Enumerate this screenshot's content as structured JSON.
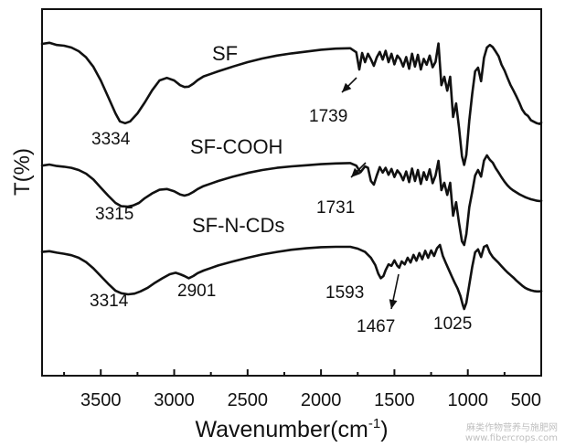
{
  "chart_data": {
    "type": "line",
    "xlabel": "Wavenumber(cm",
    "xlabel_sup": "-1",
    "xlabel_close": ")",
    "ylabel": "T(%)",
    "xlim": [
      3900,
      500
    ],
    "x_reversed": true,
    "xticks": [
      3500,
      3000,
      2500,
      2000,
      1500,
      1000,
      500
    ],
    "y_ticks_shown": false,
    "grid": false,
    "legend": "none",
    "series": [
      {
        "name": "SF",
        "x": [
          3900,
          3850,
          3800,
          3750,
          3700,
          3650,
          3600,
          3550,
          3500,
          3450,
          3400,
          3370,
          3334,
          3300,
          3250,
          3200,
          3150,
          3100,
          3050,
          3000,
          2960,
          2930,
          2901,
          2870,
          2840,
          2800,
          2750,
          2700,
          2600,
          2500,
          2400,
          2300,
          2200,
          2100,
          2000,
          1900,
          1800,
          1760,
          1739,
          1720,
          1700,
          1680,
          1660,
          1640,
          1620,
          1600,
          1580,
          1560,
          1540,
          1520,
          1500,
          1480,
          1460,
          1440,
          1420,
          1400,
          1380,
          1360,
          1340,
          1320,
          1300,
          1280,
          1260,
          1240,
          1220,
          1200,
          1180,
          1160,
          1140,
          1120,
          1100,
          1080,
          1060,
          1040,
          1025,
          1010,
          990,
          970,
          950,
          930,
          910,
          890,
          870,
          850,
          830,
          810,
          790,
          770,
          750,
          730,
          710,
          690,
          670,
          650,
          630,
          610,
          590,
          570,
          550,
          530,
          510,
          500
        ],
        "y": [
          91.5,
          91.8,
          91.2,
          91,
          90.5,
          89.5,
          87.8,
          85.2,
          81.5,
          77,
          72.5,
          70.3,
          69.8,
          70.3,
          72.5,
          75.5,
          78.8,
          81.5,
          82.2,
          81.5,
          80.2,
          79.7,
          79.8,
          80.6,
          81.6,
          82.6,
          83.3,
          84,
          85.3,
          86.5,
          87.5,
          88.3,
          88.9,
          89.4,
          89.9,
          90.2,
          90.3,
          89.2,
          84.5,
          89,
          86.5,
          88.8,
          87.3,
          85.5,
          87.8,
          89.3,
          87.2,
          89.6,
          86.5,
          88.8,
          85.9,
          88.3,
          87.3,
          85.3,
          87.9,
          84.7,
          88.8,
          85.3,
          88.5,
          84.5,
          87.4,
          85.8,
          88.3,
          85.1,
          86.6,
          91.6,
          80.2,
          82.5,
          78.7,
          82.5,
          71.5,
          75.2,
          68.5,
          60.8,
          58.4,
          61.2,
          70.5,
          77.8,
          84,
          85,
          81.3,
          87.7,
          90.5,
          91.2,
          90.6,
          89.4,
          88.1,
          85.8,
          84.2,
          82.2,
          80.3,
          78.8,
          77.2,
          75.5,
          73.6,
          72.4,
          71.8,
          70.6,
          70.2,
          69.8,
          69.6,
          70
        ]
      },
      {
        "name": "SF-COOH",
        "x": [
          3900,
          3850,
          3800,
          3750,
          3700,
          3650,
          3600,
          3550,
          3500,
          3450,
          3400,
          3360,
          3315,
          3280,
          3240,
          3200,
          3150,
          3100,
          3050,
          3000,
          2960,
          2930,
          2901,
          2870,
          2840,
          2800,
          2750,
          2700,
          2600,
          2500,
          2400,
          2300,
          2200,
          2100,
          2000,
          1900,
          1800,
          1760,
          1731,
          1700,
          1680,
          1660,
          1640,
          1620,
          1600,
          1580,
          1560,
          1540,
          1520,
          1500,
          1480,
          1460,
          1440,
          1420,
          1400,
          1380,
          1360,
          1340,
          1320,
          1300,
          1280,
          1260,
          1240,
          1220,
          1200,
          1180,
          1160,
          1140,
          1120,
          1100,
          1080,
          1060,
          1040,
          1025,
          1010,
          990,
          970,
          950,
          930,
          910,
          890,
          870,
          850,
          830,
          810,
          790,
          770,
          750,
          730,
          710,
          690,
          670,
          650,
          630,
          610,
          590,
          570,
          550,
          530,
          510,
          500
        ],
        "y": [
          58.2,
          58.5,
          58.1,
          57.9,
          57.6,
          57,
          56,
          54.4,
          52.2,
          50,
          48,
          47.1,
          47,
          47.3,
          48,
          49.3,
          50.6,
          51.6,
          51.8,
          51.2,
          50.3,
          50,
          50.3,
          51,
          51.8,
          52.6,
          53.3,
          54,
          55.2,
          56.2,
          57,
          57.6,
          58,
          58.3,
          58.6,
          58.8,
          58.9,
          58.2,
          56.4,
          58,
          57.6,
          54,
          53,
          55.5,
          57.8,
          56.3,
          57.6,
          55.7,
          57.3,
          55.1,
          56.9,
          55.9,
          54.2,
          56.6,
          53.7,
          57.4,
          54,
          57,
          53.2,
          56.4,
          54.3,
          57.2,
          53.4,
          55.5,
          59.5,
          51.5,
          53.5,
          50.2,
          53.5,
          44.5,
          48.2,
          42.5,
          37.5,
          36.5,
          39.5,
          46.8,
          51,
          55.5,
          57,
          55.2,
          59.6,
          61,
          59.8,
          59,
          57.5,
          56.3,
          55,
          53.8,
          52.8,
          52,
          51.4,
          50.9,
          50.4,
          50,
          49.6,
          49.3,
          49,
          48.8,
          48.6,
          48.5,
          48.6
        ]
      },
      {
        "name": "SF-N-CDs",
        "x": [
          3900,
          3850,
          3800,
          3750,
          3700,
          3650,
          3600,
          3550,
          3500,
          3450,
          3400,
          3360,
          3314,
          3270,
          3230,
          3180,
          3130,
          3080,
          3030,
          2990,
          2960,
          2930,
          2901,
          2870,
          2840,
          2800,
          2750,
          2700,
          2600,
          2500,
          2400,
          2300,
          2200,
          2100,
          2000,
          1900,
          1800,
          1750,
          1700,
          1660,
          1630,
          1610,
          1593,
          1575,
          1560,
          1540,
          1520,
          1500,
          1480,
          1467,
          1450,
          1430,
          1410,
          1390,
          1370,
          1350,
          1330,
          1310,
          1290,
          1270,
          1250,
          1230,
          1210,
          1190,
          1170,
          1150,
          1130,
          1110,
          1090,
          1070,
          1050,
          1035,
          1025,
          1010,
          990,
          970,
          950,
          930,
          910,
          890,
          870,
          850,
          830,
          810,
          790,
          770,
          750,
          730,
          710,
          690,
          670,
          650,
          630,
          610,
          590,
          570,
          550,
          530,
          510,
          500
        ],
        "y": [
          34.6,
          34.8,
          34.4,
          34.1,
          33.7,
          33,
          31.8,
          30.1,
          28,
          25.9,
          24,
          23.3,
          23,
          23.2,
          23.8,
          24.8,
          26.2,
          27.4,
          28.5,
          28.9,
          28.5,
          28,
          27.4,
          28,
          28.8,
          29.5,
          30.2,
          30.9,
          32,
          33,
          33.9,
          34.6,
          35.2,
          35.6,
          35.9,
          36,
          36,
          35.5,
          34.6,
          33,
          31,
          28.7,
          27.4,
          28,
          29.6,
          31.2,
          30.8,
          32.3,
          30.8,
          30.3,
          32,
          31.2,
          33,
          31.7,
          33.8,
          32.2,
          34.3,
          32.6,
          34.9,
          33,
          35,
          33.5,
          35.6,
          36.5,
          33.5,
          31.6,
          29.8,
          28,
          26.2,
          24.6,
          22.5,
          20.2,
          19,
          20.7,
          25.6,
          30.5,
          34.5,
          35.3,
          33.2,
          36,
          36.4,
          34.4,
          33.2,
          32.4,
          31.6,
          30.7,
          29.8,
          29,
          28.3,
          27.6,
          26.8,
          26.1,
          25.4,
          24.8,
          24.4,
          24.1,
          23.9,
          23.8,
          23.8,
          23.9
        ]
      }
    ],
    "annotations": [
      {
        "text": "3334",
        "x": 3334,
        "series": 0,
        "arrow": false
      },
      {
        "text": "1739",
        "x": 1739,
        "series": 0,
        "arrow": true
      },
      {
        "text": "3315",
        "x": 3315,
        "series": 1,
        "arrow": false
      },
      {
        "text": "1731",
        "x": 1731,
        "series": 1,
        "arrow": true
      },
      {
        "text": "3314",
        "x": 3314,
        "series": 2,
        "arrow": false
      },
      {
        "text": "2901",
        "x": 2901,
        "series": 2,
        "arrow": false
      },
      {
        "text": "1593",
        "x": 1593,
        "series": 2,
        "arrow": false
      },
      {
        "text": "1467",
        "x": 1467,
        "series": 2,
        "arrow": true
      },
      {
        "text": "1025",
        "x": 1025,
        "series": 2,
        "arrow": false
      }
    ]
  },
  "watermark": {
    "line1": "麻类作物营养与施肥网",
    "line2": "www.fibercrops.com"
  }
}
